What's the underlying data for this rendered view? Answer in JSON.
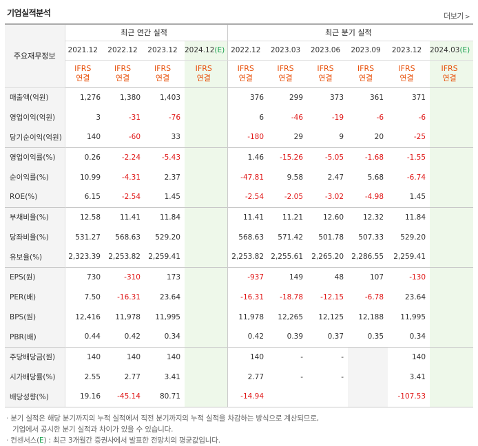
{
  "title": "기업실적분석",
  "more_label": "더보기",
  "headers": {
    "label_col": "주요재무정보",
    "annual_group": "최근 연간 실적",
    "quarter_group": "최근 분기 실적",
    "annual_periods": [
      "2021.12",
      "2022.12",
      "2023.12",
      "2024.12"
    ],
    "annual_est_suffix": "(E)",
    "quarter_periods": [
      "2022.12",
      "2023.03",
      "2023.06",
      "2023.09",
      "2023.12",
      "2024.03"
    ],
    "quarter_est_suffix": "(E)",
    "ifrs_line1": "IFRS",
    "ifrs_line2": "연결"
  },
  "rows": [
    {
      "label": "매출액(억원)",
      "annual": [
        "1,276",
        "1,380",
        "1,403",
        ""
      ],
      "quarter": [
        "376",
        "299",
        "373",
        "361",
        "371",
        ""
      ]
    },
    {
      "label": "영업이익(억원)",
      "annual": [
        "3",
        "-31",
        "-76",
        ""
      ],
      "quarter": [
        "6",
        "-46",
        "-19",
        "-6",
        "-6",
        ""
      ]
    },
    {
      "label": "당기순이익(억원)",
      "annual": [
        "140",
        "-60",
        "33",
        ""
      ],
      "quarter": [
        "-180",
        "29",
        "9",
        "20",
        "-25",
        ""
      ]
    },
    {
      "label": "영업이익률(%)",
      "annual": [
        "0.26",
        "-2.24",
        "-5.43",
        ""
      ],
      "quarter": [
        "1.46",
        "-15.26",
        "-5.05",
        "-1.68",
        "-1.55",
        ""
      ]
    },
    {
      "label": "순이익률(%)",
      "annual": [
        "10.99",
        "-4.31",
        "2.37",
        ""
      ],
      "quarter": [
        "-47.81",
        "9.58",
        "2.47",
        "5.68",
        "-6.74",
        ""
      ]
    },
    {
      "label": "ROE(%)",
      "annual": [
        "6.15",
        "-2.54",
        "1.45",
        ""
      ],
      "quarter": [
        "-2.54",
        "-2.05",
        "-3.02",
        "-4.98",
        "1.45",
        ""
      ]
    },
    {
      "label": "부채비율(%)",
      "annual": [
        "12.58",
        "11.41",
        "11.84",
        ""
      ],
      "quarter": [
        "11.41",
        "11.21",
        "12.60",
        "12.32",
        "11.84",
        ""
      ]
    },
    {
      "label": "당좌비율(%)",
      "annual": [
        "531.27",
        "568.63",
        "529.20",
        ""
      ],
      "quarter": [
        "568.63",
        "571.42",
        "501.78",
        "507.33",
        "529.20",
        ""
      ]
    },
    {
      "label": "유보율(%)",
      "annual": [
        "2,323.39",
        "2,253.82",
        "2,259.41",
        ""
      ],
      "quarter": [
        "2,253.82",
        "2,255.61",
        "2,265.20",
        "2,286.55",
        "2,259.41",
        ""
      ]
    },
    {
      "label": "EPS(원)",
      "annual": [
        "730",
        "-310",
        "173",
        ""
      ],
      "quarter": [
        "-937",
        "149",
        "48",
        "107",
        "-130",
        ""
      ]
    },
    {
      "label": "PER(배)",
      "annual": [
        "7.50",
        "-16.31",
        "23.64",
        ""
      ],
      "quarter": [
        "-16.31",
        "-18.78",
        "-12.15",
        "-6.78",
        "23.64",
        ""
      ]
    },
    {
      "label": "BPS(원)",
      "annual": [
        "12,416",
        "11,978",
        "11,995",
        ""
      ],
      "quarter": [
        "11,978",
        "12,265",
        "12,125",
        "12,188",
        "11,995",
        ""
      ]
    },
    {
      "label": "PBR(배)",
      "annual": [
        "0.44",
        "0.42",
        "0.34",
        ""
      ],
      "quarter": [
        "0.42",
        "0.39",
        "0.37",
        "0.35",
        "0.34",
        ""
      ]
    },
    {
      "label": "주당배당금(원)",
      "annual": [
        "140",
        "140",
        "140",
        ""
      ],
      "quarter": [
        "140",
        "-",
        "-",
        "",
        "140",
        ""
      ]
    },
    {
      "label": "시가배당률(%)",
      "annual": [
        "2.55",
        "2.77",
        "3.41",
        ""
      ],
      "quarter": [
        "2.77",
        "-",
        "-",
        "",
        "3.41",
        ""
      ]
    },
    {
      "label": "배당성향(%)",
      "annual": [
        "19.16",
        "-45.14",
        "80.71",
        ""
      ],
      "quarter": [
        "-14.94",
        "",
        "",
        "",
        "-107.53",
        ""
      ]
    }
  ],
  "notes": {
    "note1_line1": "분기 실적은 해당 분기까지의 누적 실적에서 직전 분기까지의 누적 실적을 차감하는 방식으로 계산되므로,",
    "note1_line2": "기업에서 공시한 분기 실적과 차이가 있을 수 있습니다.",
    "note2_prefix": "컨센서스(",
    "note2_e": "E",
    "note2_suffix": ") : 최근 3개월간 증권사에서 발표한 전망치의 평균값입니다."
  },
  "colors": {
    "negative": "#e01818",
    "ifrs_orange": "#e8530e",
    "estimate_bg": "#eef8ea",
    "estimate_mark": "#19a14e"
  }
}
